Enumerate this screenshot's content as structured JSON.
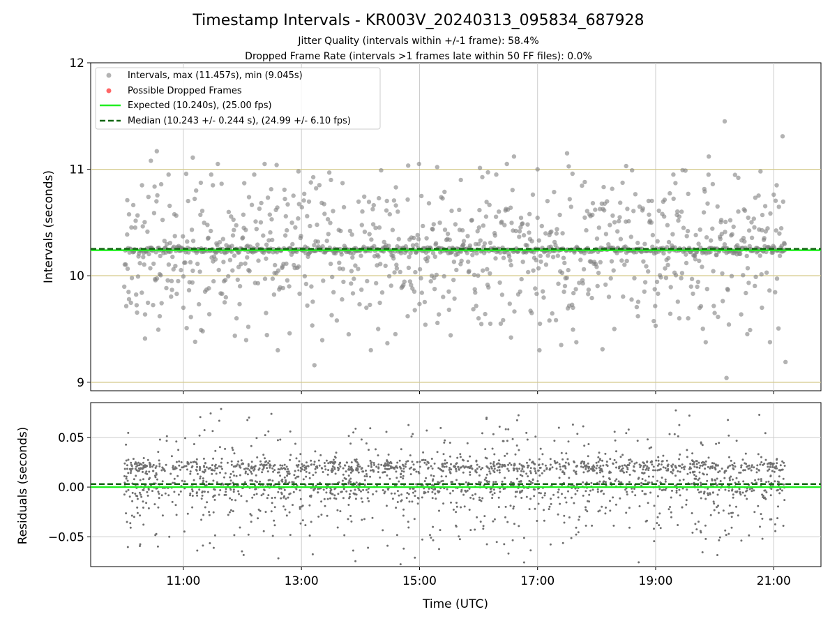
{
  "chart_data": [
    {
      "type": "scatter",
      "title": "Timestamp Intervals - KR003V_20240313_095834_687928",
      "subtitle_lines": [
        "Jitter Quality (intervals within +/-1 frame): 58.4%",
        "Dropped Frame Rate (intervals >1 frames late within 50 FF files): 0.0%"
      ],
      "xlabel": "",
      "ylabel": "Intervals (seconds)",
      "ylim": [
        8.92,
        12.0
      ],
      "xlim_hours": [
        9.43,
        21.8
      ],
      "yticks": [
        9,
        10,
        11,
        12
      ],
      "ytick_labels": [
        "9",
        "10",
        "11",
        "12"
      ],
      "reference_lines_y": [
        9,
        10,
        11
      ],
      "reference_line_color": "#d4c98a",
      "grid": "vertical",
      "legend_position": "top-left",
      "legend": [
        "Intervals, max (11.457s), min (9.045s)",
        "Possible Dropped Frames",
        "Expected (10.240s), (25.00 fps)",
        "Median (10.243 +/- 0.244 s), (24.99 +/- 6.10 fps)"
      ],
      "expected": 10.24,
      "median": 10.243,
      "max": 11.457,
      "min": 9.045,
      "time_range_hours": [
        10.0,
        21.2
      ],
      "series": [
        {
          "name": "Intervals",
          "color": "#808080",
          "points": [
            [
              10.05,
              10.71
            ],
            [
              10.08,
              9.78
            ],
            [
              10.55,
              11.17
            ],
            [
              10.45,
              11.08
            ],
            [
              11.16,
              11.11
            ],
            [
              11.2,
              9.38
            ],
            [
              11.3,
              9.49
            ],
            [
              10.35,
              9.41
            ],
            [
              12.58,
              11.04
            ],
            [
              13.22,
              9.16
            ],
            [
              14.35,
              10.99
            ],
            [
              15.3,
              11.02
            ],
            [
              16.6,
              11.12
            ],
            [
              17.5,
              11.15
            ],
            [
              17.4,
              9.35
            ],
            [
              18.1,
              9.31
            ],
            [
              18.6,
              10.99
            ],
            [
              19.9,
              11.12
            ],
            [
              20.17,
              11.45
            ],
            [
              20.2,
              9.04
            ],
            [
              21.15,
              11.31
            ],
            [
              21.2,
              9.19
            ],
            [
              11.9,
              9.6
            ],
            [
              12.1,
              9.52
            ],
            [
              12.8,
              9.46
            ],
            [
              13.8,
              9.45
            ],
            [
              14.3,
              9.5
            ],
            [
              15.1,
              9.54
            ],
            [
              16.2,
              9.55
            ],
            [
              16.55,
              9.42
            ],
            [
              17.2,
              9.58
            ],
            [
              18.3,
              9.5
            ],
            [
              19.0,
              9.53
            ],
            [
              19.55,
              9.6
            ],
            [
              20.6,
              9.49
            ],
            [
              21.05,
              10.85
            ],
            [
              10.3,
              10.85
            ],
            [
              10.75,
              10.95
            ],
            [
              11.5,
              10.85
            ],
            [
              12.2,
              10.95
            ],
            [
              12.95,
              10.98
            ],
            [
              13.5,
              10.9
            ],
            [
              14.6,
              10.83
            ],
            [
              15.7,
              10.9
            ],
            [
              16.3,
              10.95
            ],
            [
              17.0,
              11.0
            ],
            [
              17.8,
              10.88
            ],
            [
              18.5,
              11.03
            ],
            [
              19.3,
              10.95
            ],
            [
              20.4,
              10.92
            ],
            [
              10.6,
              9.62
            ],
            [
              11.0,
              9.7
            ],
            [
              11.7,
              9.75
            ],
            [
              12.4,
              9.65
            ],
            [
              13.1,
              9.72
            ],
            [
              13.6,
              9.58
            ],
            [
              14.1,
              9.7
            ],
            [
              14.8,
              9.62
            ],
            [
              15.5,
              9.68
            ],
            [
              16.0,
              9.6
            ],
            [
              16.9,
              9.65
            ],
            [
              17.6,
              9.7
            ],
            [
              18.7,
              9.62
            ],
            [
              19.4,
              9.6
            ],
            [
              20.0,
              9.65
            ],
            [
              20.8,
              9.7
            ]
          ]
        },
        {
          "name": "Possible Dropped Frames",
          "color": "#ff6666",
          "points": []
        }
      ]
    },
    {
      "type": "scatter",
      "title": "",
      "xlabel": "Time (UTC)",
      "ylabel": "Residuals (seconds)",
      "ylim": [
        -0.08,
        0.085
      ],
      "yticks": [
        0.05,
        0.0,
        -0.05
      ],
      "ytick_labels": [
        "0.05",
        "0.00",
        "−0.05"
      ],
      "xticks_hours": [
        11,
        13,
        15,
        17,
        19,
        21
      ],
      "xtick_labels": [
        "11:00",
        "13:00",
        "15:00",
        "17:00",
        "19:00",
        "21:00"
      ],
      "grid": "both",
      "zero_line": 0.0,
      "median_residual": 0.003,
      "series": [
        {
          "name": "Residuals",
          "color": "#707070",
          "points": []
        }
      ]
    }
  ],
  "colors": {
    "points": "#808080",
    "dropped": "#ff6666",
    "expected": "#22ee22",
    "median": "#116611",
    "grid": "#cccccc",
    "reference": "#d4c98a"
  }
}
